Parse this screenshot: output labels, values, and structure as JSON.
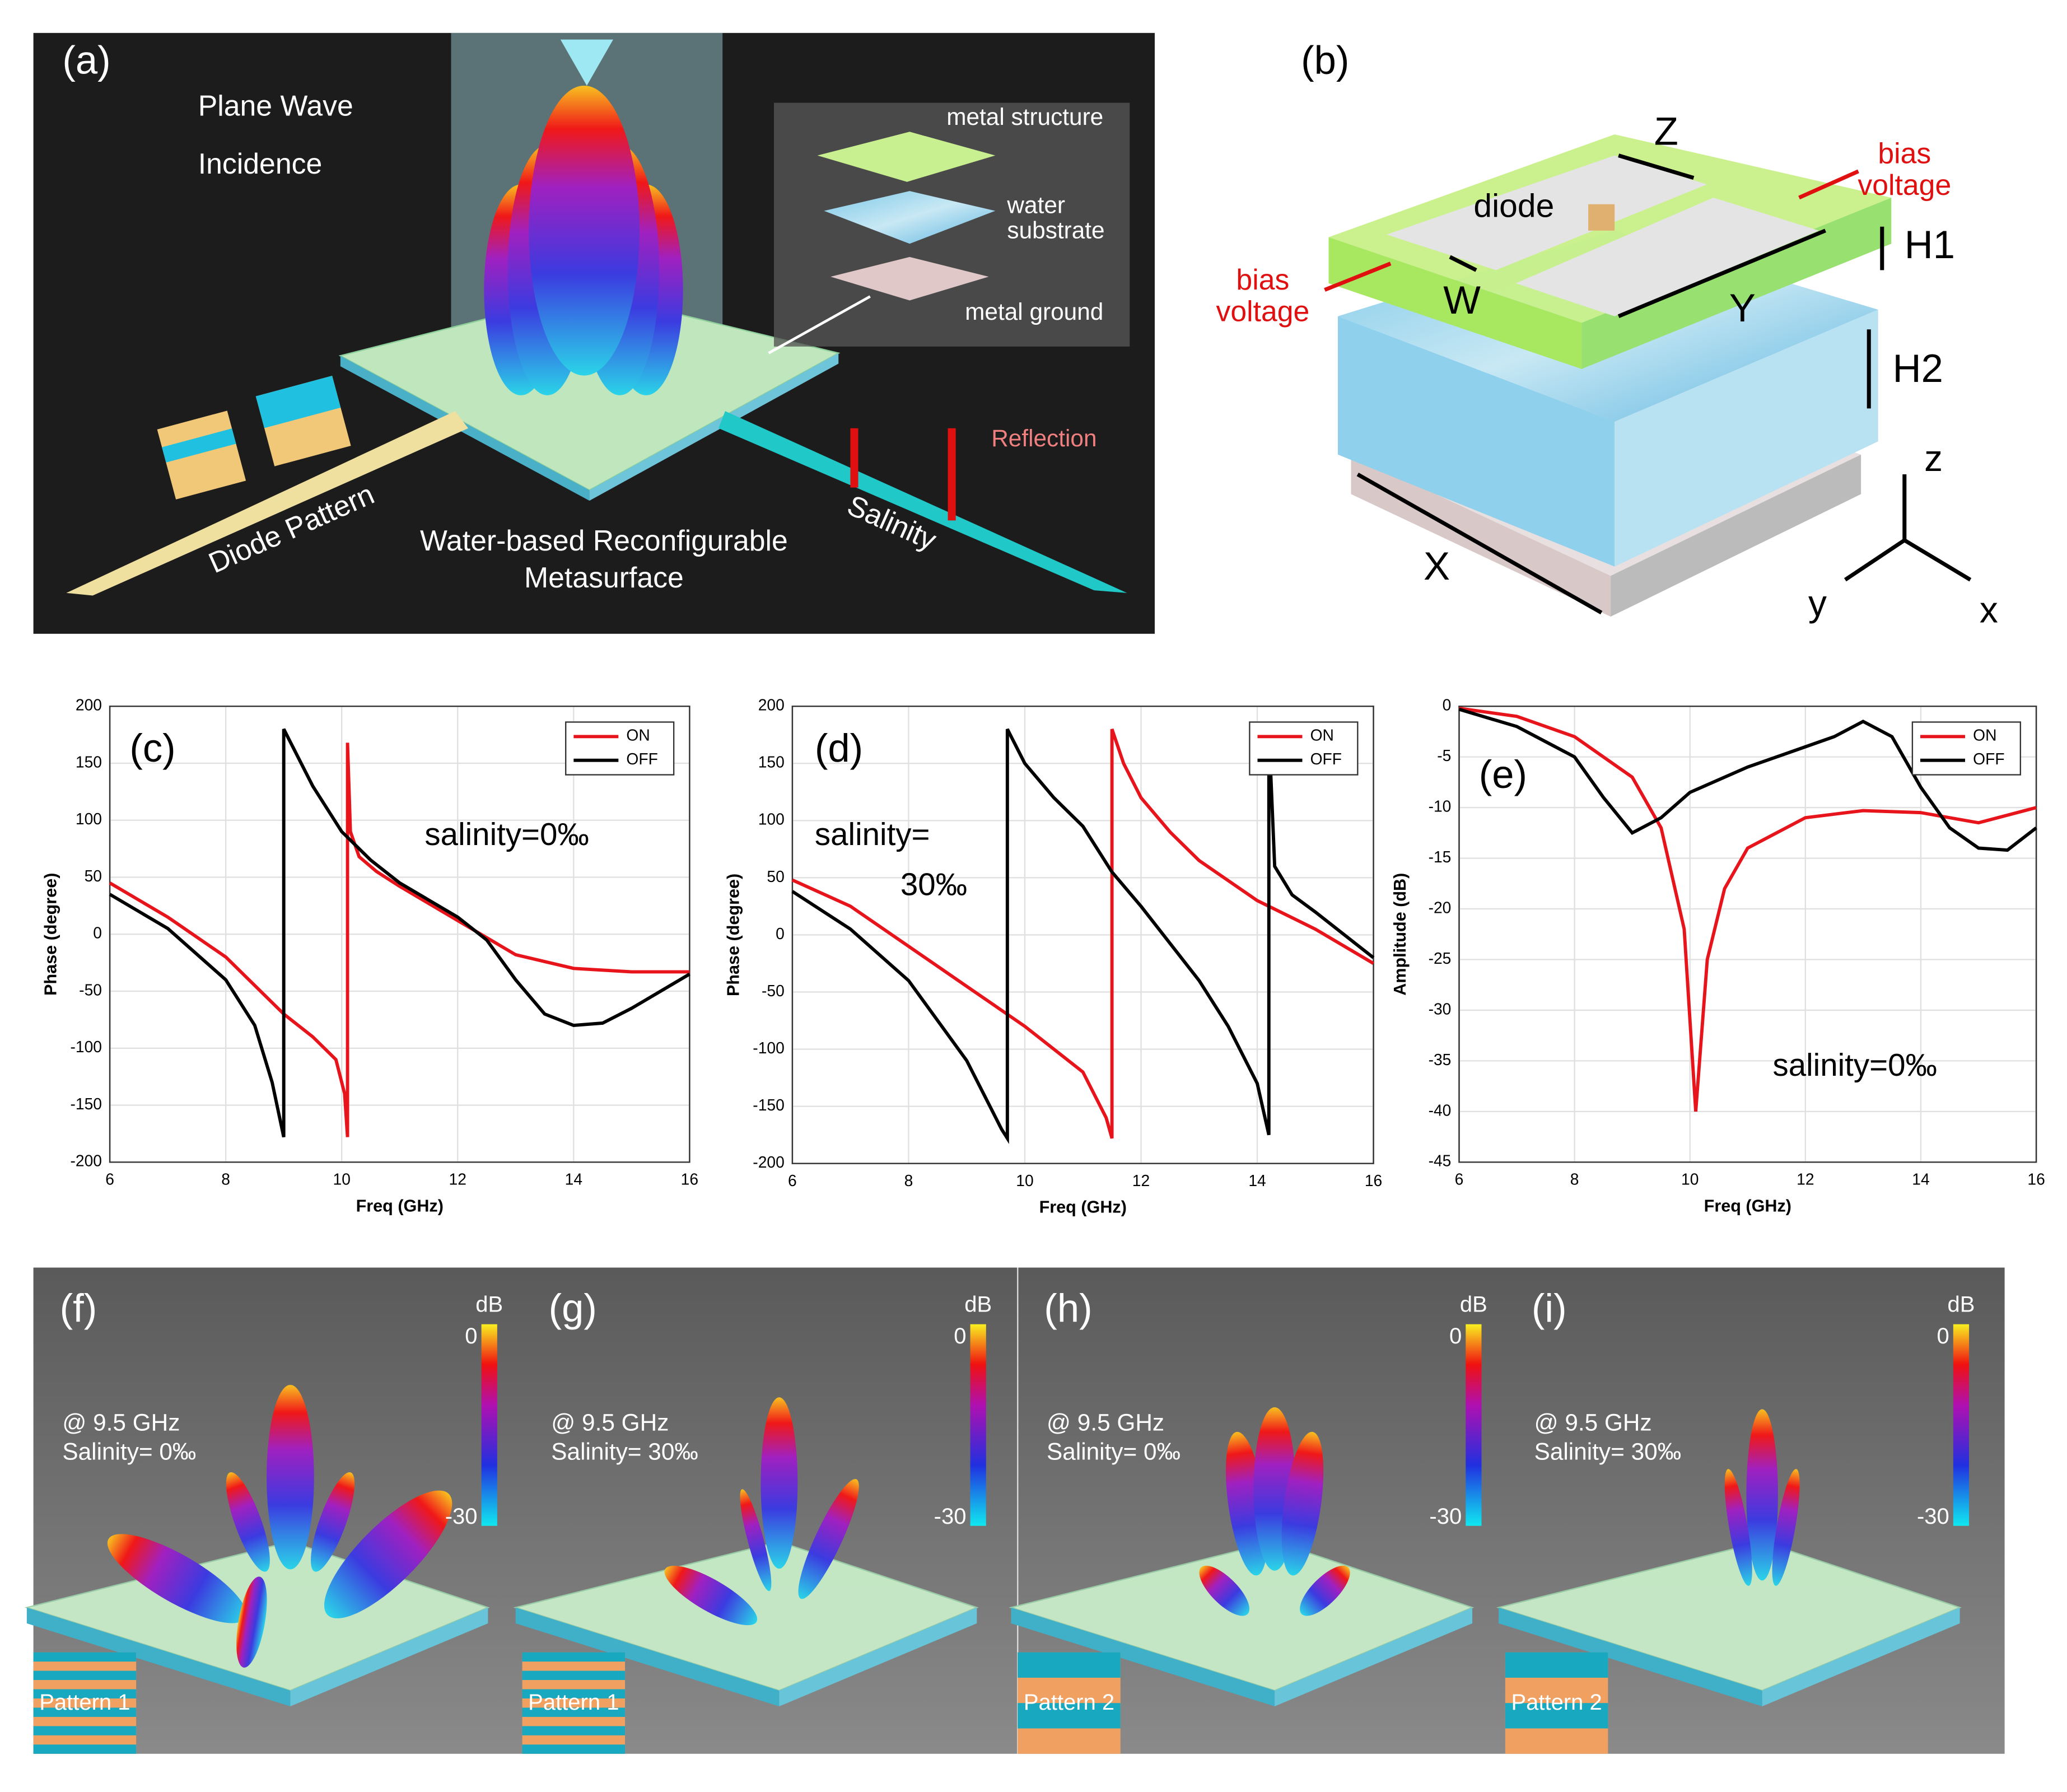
{
  "chart_data": [
    {
      "type": "line",
      "label": "(c)",
      "xlabel": "Freq (GHz)",
      "ylabel": "Phase (degree)",
      "xlim": [
        6,
        16
      ],
      "ylim": [
        -200,
        200
      ],
      "xticks": [
        6,
        8,
        10,
        12,
        14,
        16
      ],
      "yticks": [
        -200,
        -150,
        -100,
        -50,
        0,
        50,
        100,
        150,
        200
      ],
      "grid": true,
      "legend": "upper right",
      "annotations": [
        "salinity=0‰"
      ],
      "series": [
        {
          "name": "ON",
          "color": "#e8141b",
          "x": [
            6,
            7,
            8,
            9,
            9.5,
            9.9,
            10.05,
            10.1,
            10.1,
            10.15,
            10.3,
            10.6,
            11,
            12,
            12.5,
            13,
            14,
            15,
            16
          ],
          "values": [
            45,
            15,
            -20,
            -70,
            -90,
            -110,
            -140,
            -178,
            168,
            90,
            68,
            55,
            42,
            12,
            -3,
            -18,
            -30,
            -33,
            -33
          ]
        },
        {
          "name": "OFF",
          "color": "#000000",
          "x": [
            6,
            7,
            8,
            8.5,
            8.8,
            9,
            9,
            9.5,
            10,
            10.5,
            11,
            12,
            12.5,
            13,
            13.5,
            14,
            14.5,
            15,
            16
          ],
          "values": [
            35,
            5,
            -40,
            -80,
            -130,
            -178,
            180,
            130,
            90,
            65,
            45,
            15,
            -5,
            -40,
            -70,
            -80,
            -78,
            -65,
            -35
          ]
        }
      ]
    },
    {
      "type": "line",
      "label": "(d)",
      "xlabel": "Freq (GHz)",
      "ylabel": "Phase (degree)",
      "xlim": [
        6,
        16
      ],
      "ylim": [
        -200,
        200
      ],
      "xticks": [
        6,
        8,
        10,
        12,
        14,
        16
      ],
      "yticks": [
        -200,
        -150,
        -100,
        -50,
        0,
        50,
        100,
        150,
        200
      ],
      "grid": true,
      "legend": "upper right",
      "annotations": [
        "salinity=",
        "30‰"
      ],
      "series": [
        {
          "name": "ON",
          "color": "#e8141b",
          "x": [
            6,
            7,
            8,
            9,
            10,
            11,
            11.4,
            11.5,
            11.5,
            11.7,
            12,
            12.5,
            13,
            14,
            15,
            16
          ],
          "values": [
            48,
            25,
            -10,
            -45,
            -80,
            -120,
            -160,
            -178,
            180,
            150,
            120,
            90,
            65,
            30,
            5,
            -25
          ]
        },
        {
          "name": "OFF",
          "color": "#000000",
          "x": [
            6,
            7,
            8,
            9,
            9.6,
            9.7,
            9.7,
            10,
            10.5,
            11,
            11.5,
            12,
            13,
            13.5,
            14,
            14.2,
            14.2,
            14.3,
            14.6,
            15,
            16
          ],
          "values": [
            38,
            5,
            -40,
            -110,
            -170,
            -178,
            180,
            150,
            120,
            95,
            55,
            25,
            -40,
            -80,
            -130,
            -175,
            180,
            60,
            35,
            20,
            -20
          ]
        }
      ]
    },
    {
      "type": "line",
      "label": "(e)",
      "xlabel": "Freq (GHz)",
      "ylabel": "Amplitude (dB)",
      "xlim": [
        6,
        16
      ],
      "ylim": [
        -45,
        0
      ],
      "xticks": [
        6,
        8,
        10,
        12,
        14,
        16
      ],
      "yticks": [
        -45,
        -40,
        -35,
        -30,
        -25,
        -20,
        -15,
        -10,
        -5,
        0
      ],
      "grid": true,
      "legend": "upper right",
      "annotations": [
        "salinity=0‰"
      ],
      "series": [
        {
          "name": "ON",
          "color": "#e8141b",
          "x": [
            6,
            7,
            8,
            9,
            9.5,
            9.9,
            10.1,
            10.3,
            10.6,
            11,
            12,
            13,
            14,
            15,
            16
          ],
          "values": [
            -0.2,
            -1,
            -3,
            -7,
            -12,
            -22,
            -40,
            -25,
            -18,
            -14,
            -11,
            -10.3,
            -10.5,
            -11.5,
            -10
          ]
        },
        {
          "name": "OFF",
          "color": "#000000",
          "x": [
            6,
            7,
            8,
            8.5,
            9,
            9.5,
            10,
            11,
            12,
            12.5,
            13,
            13.5,
            14,
            14.5,
            15,
            15.5,
            16
          ],
          "values": [
            -0.3,
            -2,
            -5,
            -9,
            -12.5,
            -11,
            -8.5,
            -6,
            -4,
            -3,
            -1.5,
            -3,
            -8,
            -12,
            -14,
            -14.2,
            -12
          ]
        }
      ]
    }
  ],
  "panel_a": {
    "label": "(a)",
    "incidence": [
      "Plane Wave",
      "Incidence"
    ],
    "layers": [
      "metal structure",
      "water",
      "substrate",
      "metal ground"
    ],
    "reflection": "Reflection",
    "salinity": "Salinity",
    "diode_pattern": "Diode Pattern",
    "caption": [
      "Water-based Reconfigurable",
      "Metasurface"
    ]
  },
  "panel_b": {
    "label": "(b)",
    "dims": [
      "Z",
      "H1",
      "W",
      "Y",
      "H2",
      "X"
    ],
    "diode": "diode",
    "bias": [
      "bias",
      "voltage",
      "bias",
      "voltage"
    ],
    "axes": [
      "z",
      "y",
      "x"
    ]
  },
  "patterns": [
    {
      "label": "(f)",
      "unit": "dB",
      "cmax": 0,
      "cmin": -30,
      "freq": "@ 9.5 GHz",
      "salinity": "Salinity= 0‰",
      "pattern": "Pattern 1"
    },
    {
      "label": "(g)",
      "unit": "dB",
      "cmax": 0,
      "cmin": -30,
      "freq": "@ 9.5 GHz",
      "salinity": "Salinity= 30‰",
      "pattern": "Pattern 1"
    },
    {
      "label": "(h)",
      "unit": "dB",
      "cmax": 0,
      "cmin": -30,
      "freq": "@ 9.5 GHz",
      "salinity": "Salinity= 0‰",
      "pattern": "Pattern 2"
    },
    {
      "label": "(i)",
      "unit": "dB",
      "cmax": 0,
      "cmin": -30,
      "freq": "@ 9.5 GHz",
      "salinity": "Salinity= 30‰",
      "pattern": "Pattern 2"
    }
  ]
}
